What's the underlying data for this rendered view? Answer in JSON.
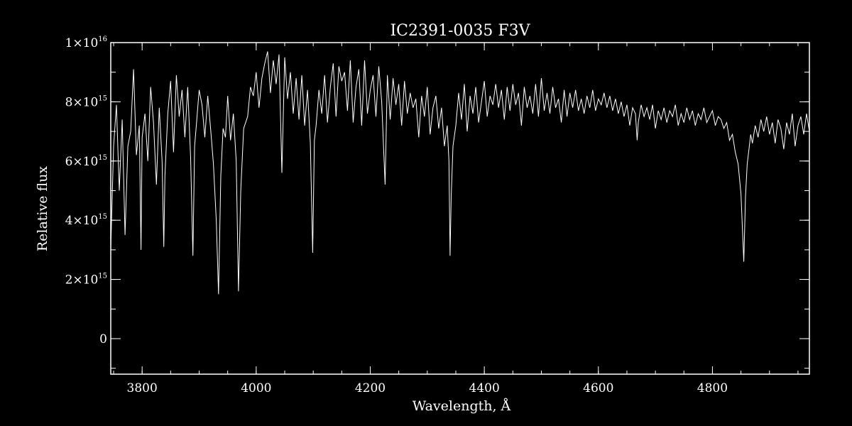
{
  "chart_data": {
    "type": "line",
    "title": "IC2391-0035  F3V",
    "xlabel": "Wavelength, Å",
    "ylabel": "Relative flux",
    "xlim": [
      3745,
      4970
    ],
    "ylim": [
      -1200000000000000.0,
      1e+16
    ],
    "grid": false,
    "legend": "none",
    "colors": {
      "background": "#000000",
      "foreground": "#ffffff"
    },
    "x_ticks": [
      {
        "value": 3800,
        "label": "3800"
      },
      {
        "value": 4000,
        "label": "4000"
      },
      {
        "value": 4200,
        "label": "4200"
      },
      {
        "value": 4400,
        "label": "4400"
      },
      {
        "value": 4600,
        "label": "4600"
      },
      {
        "value": 4800,
        "label": "4800"
      }
    ],
    "x_minor_step": 50,
    "y_ticks": [
      {
        "value": 0,
        "label": "0",
        "mantissa": "0",
        "exponent": ""
      },
      {
        "value": 2000000000000000.0,
        "label": "2×10^15",
        "mantissa": "2×10",
        "exponent": "15"
      },
      {
        "value": 4000000000000000.0,
        "label": "4×10^15",
        "mantissa": "4×10",
        "exponent": "15"
      },
      {
        "value": 6000000000000000.0,
        "label": "6×10^15",
        "mantissa": "6×10",
        "exponent": "15"
      },
      {
        "value": 8000000000000000.0,
        "label": "8×10^15",
        "mantissa": "8×10",
        "exponent": "15"
      },
      {
        "value": 1e+16,
        "label": "1×10^16",
        "mantissa": "1×10",
        "exponent": "16"
      }
    ],
    "y_minor_step": 1000000000000000.0,
    "series": [
      {
        "x": [
          3745,
          3750,
          3755,
          3760,
          3765,
          3770,
          3775,
          3780,
          3785,
          3790,
          3795,
          3798,
          3800,
          3805,
          3810,
          3815,
          3820,
          3825,
          3830,
          3835,
          3838,
          3840,
          3845,
          3850,
          3855,
          3860,
          3865,
          3870,
          3875,
          3880,
          3885,
          3889,
          3892,
          3895,
          3900,
          3905,
          3910,
          3915,
          3920,
          3925,
          3930,
          3934,
          3938,
          3942,
          3946,
          3950,
          3955,
          3960,
          3965,
          3969,
          3973,
          3978,
          3985,
          3990,
          3995,
          4000,
          4005,
          4010,
          4015,
          4020,
          4025,
          4030,
          4035,
          4040,
          4045,
          4050,
          4055,
          4060,
          4065,
          4070,
          4075,
          4080,
          4085,
          4090,
          4095,
          4099,
          4102,
          4105,
          4110,
          4115,
          4120,
          4125,
          4130,
          4135,
          4140,
          4145,
          4150,
          4155,
          4160,
          4165,
          4170,
          4175,
          4180,
          4185,
          4190,
          4195,
          4200,
          4205,
          4210,
          4215,
          4220,
          4226,
          4230,
          4235,
          4240,
          4245,
          4250,
          4255,
          4260,
          4265,
          4270,
          4275,
          4280,
          4285,
          4290,
          4295,
          4300,
          4305,
          4310,
          4315,
          4320,
          4325,
          4330,
          4335,
          4338,
          4340,
          4342,
          4345,
          4350,
          4355,
          4360,
          4365,
          4370,
          4375,
          4380,
          4385,
          4390,
          4395,
          4400,
          4405,
          4410,
          4415,
          4420,
          4425,
          4430,
          4435,
          4440,
          4445,
          4450,
          4455,
          4460,
          4465,
          4470,
          4475,
          4480,
          4485,
          4490,
          4495,
          4500,
          4505,
          4510,
          4515,
          4520,
          4525,
          4530,
          4535,
          4540,
          4545,
          4550,
          4555,
          4560,
          4565,
          4570,
          4575,
          4580,
          4585,
          4590,
          4595,
          4600,
          4605,
          4610,
          4615,
          4620,
          4625,
          4630,
          4635,
          4640,
          4645,
          4650,
          4655,
          4660,
          4665,
          4668,
          4670,
          4675,
          4680,
          4685,
          4690,
          4695,
          4700,
          4705,
          4710,
          4715,
          4720,
          4725,
          4730,
          4735,
          4740,
          4745,
          4750,
          4755,
          4760,
          4765,
          4770,
          4775,
          4780,
          4785,
          4790,
          4795,
          4800,
          4805,
          4810,
          4815,
          4820,
          4825,
          4830,
          4835,
          4840,
          4845,
          4850,
          4855,
          4858,
          4861,
          4864,
          4867,
          4870,
          4875,
          4880,
          4885,
          4890,
          4895,
          4900,
          4905,
          4910,
          4915,
          4920,
          4925,
          4930,
          4935,
          4940,
          4945,
          4950,
          4955,
          4960,
          4965,
          4970
        ],
        "y": [
          3000000000000000.0,
          6500000000000000.0,
          7900000000000000.0,
          5000000000000000.0,
          7400000000000000.0,
          3500000000000000.0,
          6500000000000000.0,
          7000000000000000.0,
          9100000000000000.0,
          6200000000000000.0,
          7200000000000000.0,
          3000000000000000.0,
          6800000000000000.0,
          7600000000000000.0,
          6000000000000000.0,
          8500000000000000.0,
          7300000000000000.0,
          5200000000000000.0,
          7800000000000000.0,
          6000000000000000.0,
          3100000000000000.0,
          5500000000000000.0,
          7600000000000000.0,
          8700000000000000.0,
          6300000000000000.0,
          8900000000000000.0,
          7500000000000000.0,
          8400000000000000.0,
          6800000000000000.0,
          8500000000000000.0,
          6100000000000000.0,
          2800000000000000.0,
          6500000000000000.0,
          7200000000000000.0,
          8400000000000000.0,
          7900000000000000.0,
          6800000000000000.0,
          8200000000000000.0,
          7100000000000000.0,
          5900000000000000.0,
          4000000000000000.0,
          1500000000000000.0,
          5500000000000000.0,
          7100000000000000.0,
          6800000000000000.0,
          8200000000000000.0,
          6700000000000000.0,
          7600000000000000.0,
          6000000000000000.0,
          1600000000000000.0,
          5000000000000000.0,
          7100000000000000.0,
          7500000000000000.0,
          8500000000000000.0,
          8200000000000000.0,
          9000000000000000.0,
          7800000000000000.0,
          8800000000000000.0,
          9300000000000000.0,
          9700000000000000.0,
          8300000000000000.0,
          9400000000000000.0,
          8600000000000000.0,
          9600000000000000.0,
          5600000000000000.0,
          9500000000000000.0,
          8100000000000000.0,
          9000000000000000.0,
          7600000000000000.0,
          8800000000000000.0,
          7400000000000000.0,
          8900000000000000.0,
          7200000000000000.0,
          8400000000000000.0,
          6600000000000000.0,
          2900000000000000.0,
          6700000000000000.0,
          7200000000000000.0,
          8400000000000000.0,
          7600000000000000.0,
          8900000000000000.0,
          7300000000000000.0,
          8500000000000000.0,
          9300000000000000.0,
          7500000000000000.0,
          9200000000000000.0,
          8700000000000000.0,
          9000000000000000.0,
          7700000000000000.0,
          9400000000000000.0,
          7300000000000000.0,
          8500000000000000.0,
          9100000000000000.0,
          7200000000000000.0,
          9400000000000000.0,
          7600000000000000.0,
          8400000000000000.0,
          8900000000000000.0,
          7500000000000000.0,
          9200000000000000.0,
          8000000000000000.0,
          5200000000000000.0,
          8900000000000000.0,
          7400000000000000.0,
          8800000000000000.0,
          7900000000000000.0,
          8600000000000000.0,
          7200000000000000.0,
          8700000000000000.0,
          7600000000000000.0,
          8300000000000000.0,
          7800000000000000.0,
          8100000000000000.0,
          6800000000000000.0,
          8200000000000000.0,
          7500000000000000.0,
          8500000000000000.0,
          6900000000000000.0,
          7800000000000000.0,
          8200000000000000.0,
          7100000000000000.0,
          7800000000000000.0,
          6500000000000000.0,
          7200000000000000.0,
          6000000000000000.0,
          2800000000000000.0,
          4800000000000000.0,
          6500000000000000.0,
          7200000000000000.0,
          8300000000000000.0,
          7400000000000000.0,
          8600000000000000.0,
          7000000000000000.0,
          8200000000000000.0,
          7600000000000000.0,
          8500000000000000.0,
          7300000000000000.0,
          8000000000000000.0,
          8700000000000000.0,
          7500000000000000.0,
          8200000000000000.0,
          7900000000000000.0,
          8600000000000000.0,
          7800000000000000.0,
          8400000000000000.0,
          7400000000000000.0,
          8500000000000000.0,
          7700000000000000.0,
          8600000000000000.0,
          7900000000000000.0,
          8300000000000000.0,
          7200000000000000.0,
          8500000000000000.0,
          7800000000000000.0,
          8200000000000000.0,
          7600000000000000.0,
          8600000000000000.0,
          7500000000000000.0,
          8800000000000000.0,
          7700000000000000.0,
          8300000000000000.0,
          7600000000000000.0,
          8500000000000000.0,
          7800000000000000.0,
          8100000000000000.0,
          7300000000000000.0,
          8400000000000000.0,
          7500000000000000.0,
          8300000000000000.0,
          7800000000000000.0,
          8400000000000000.0,
          7700000000000000.0,
          8100000000000000.0,
          7600000000000000.0,
          8200000000000000.0,
          7800000000000000.0,
          8400000000000000.0,
          7700000000000000.0,
          8100000000000000.0,
          7900000000000000.0,
          8300000000000000.0,
          7800000000000000.0,
          8200000000000000.0,
          7700000000000000.0,
          8100000000000000.0,
          7600000000000000.0,
          8000000000000000.0,
          7500000000000000.0,
          7900000000000000.0,
          7200000000000000.0,
          7800000000000000.0,
          7600000000000000.0,
          6700000000000000.0,
          7300000000000000.0,
          7900000000000000.0,
          7500000000000000.0,
          7800000000000000.0,
          7400000000000000.0,
          7900000000000000.0,
          7100000000000000.0,
          7700000000000000.0,
          7400000000000000.0,
          7800000000000000.0,
          7300000000000000.0,
          7700000000000000.0,
          7500000000000000.0,
          7900000000000000.0,
          7200000000000000.0,
          7600000000000000.0,
          7300000000000000.0,
          7800000000000000.0,
          7400000000000000.0,
          7700000000000000.0,
          7200000000000000.0,
          7600000000000000.0,
          7400000000000000.0,
          7800000000000000.0,
          7300000000000000.0,
          7500000000000000.0,
          7700000000000000.0,
          7200000000000000.0,
          7500000000000000.0,
          7400000000000000.0,
          7100000000000000.0,
          7300000000000000.0,
          6700000000000000.0,
          6900000000000000.0,
          6300000000000000.0,
          5900000000000000.0,
          4900000000000000.0,
          2600000000000000.0,
          4800000000000000.0,
          5900000000000000.0,
          6400000000000000.0,
          6900000000000000.0,
          6600000000000000.0,
          7200000000000000.0,
          6800000000000000.0,
          7400000000000000.0,
          7000000000000000.0,
          7500000000000000.0,
          6900000000000000.0,
          7300000000000000.0,
          6600000000000000.0,
          7400000000000000.0,
          7100000000000000.0,
          6400000000000000.0,
          7300000000000000.0,
          6900000000000000.0,
          7600000000000000.0,
          6500000000000000.0,
          7200000000000000.0,
          7500000000000000.0,
          6900000000000000.0,
          7600000000000000.0,
          7000000000000000.0
        ]
      }
    ]
  }
}
